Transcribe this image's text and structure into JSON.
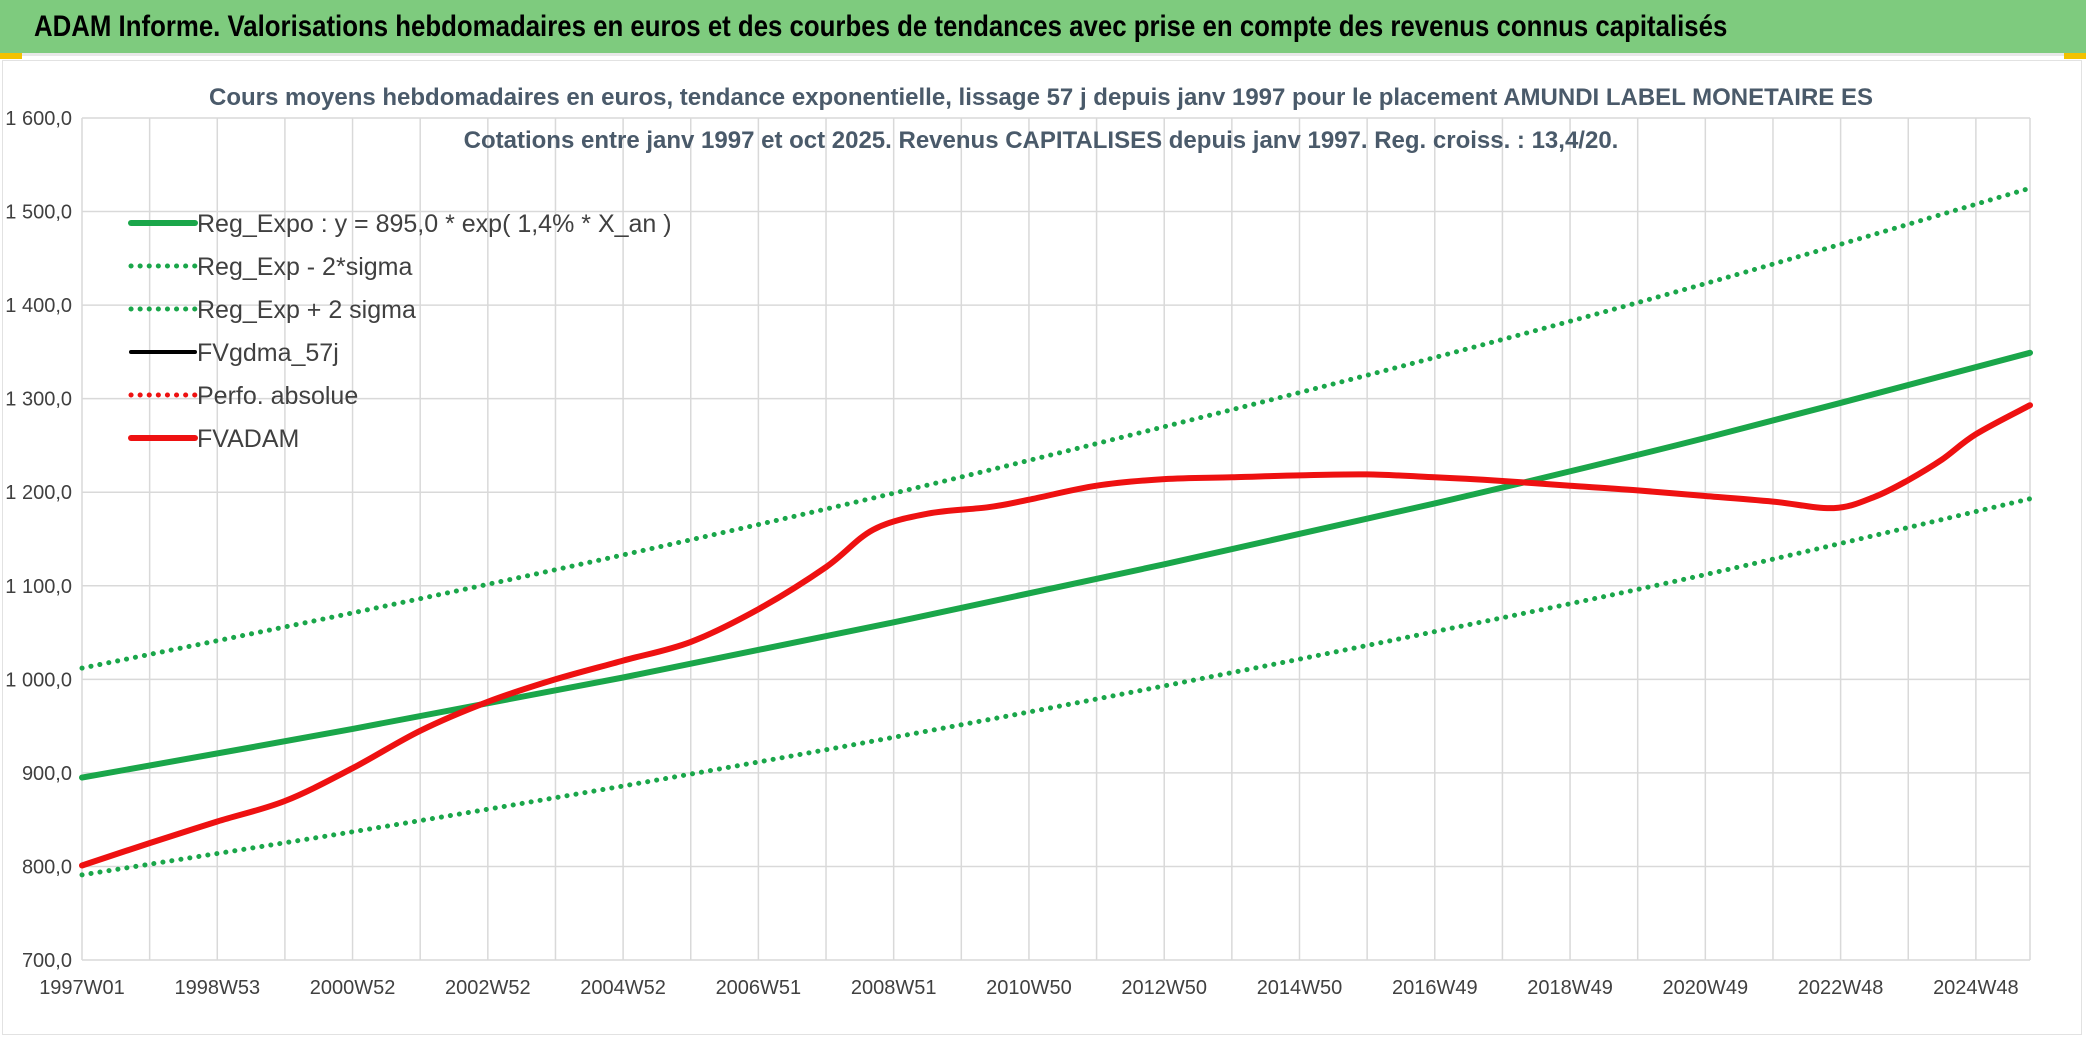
{
  "banner": {
    "title": "ADAM Informe. Valorisations hebdomadaires en euros et des courbes de tendances avec prise en compte des revenus connus capitalisés"
  },
  "colors": {
    "banner_bg": "#7ecb7e",
    "corner": "#f2c200",
    "trend": "#1aa64a",
    "band": "#1aa64a",
    "fvadam": "#ee1111",
    "fvgdma": "#000000",
    "perfo": "#ee1111",
    "grid": "#d9d9d9"
  },
  "chart_data": {
    "type": "line",
    "title": "Cours moyens hebdomadaires en euros, tendance exponentielle, lissage 57 j depuis janv 1997 pour le placement AMUNDI LABEL MONETAIRE ES",
    "subtitle": "Cotations entre janv 1997 et oct 2025. Revenus CAPITALISES depuis janv 1997. Reg. croiss. : 13,4/20.",
    "xlabel": "",
    "ylabel": "",
    "ylim": [
      700,
      1600
    ],
    "xlim": [
      1997.0,
      2025.8
    ],
    "grid": true,
    "legend_position": "top-left",
    "y_ticks": [
      "700,0",
      "800,0",
      "900,0",
      "1 000,0",
      "1 100,0",
      "1 200,0",
      "1 300,0",
      "1 400,0",
      "1 500,0",
      "1 600,0"
    ],
    "x_ticks": [
      {
        "label": "1997W01",
        "x": 1997.0
      },
      {
        "label": "1998W53",
        "x": 1999.0
      },
      {
        "label": "2000W52",
        "x": 2001.0
      },
      {
        "label": "2002W52",
        "x": 2003.0
      },
      {
        "label": "2004W52",
        "x": 2005.0
      },
      {
        "label": "2006W51",
        "x": 2007.0
      },
      {
        "label": "2008W51",
        "x": 2009.0
      },
      {
        "label": "2010W50",
        "x": 2011.0
      },
      {
        "label": "2012W50",
        "x": 2013.0
      },
      {
        "label": "2014W50",
        "x": 2015.0
      },
      {
        "label": "2016W49",
        "x": 2017.0
      },
      {
        "label": "2018W49",
        "x": 2019.0
      },
      {
        "label": "2020W49",
        "x": 2021.0
      },
      {
        "label": "2022W48",
        "x": 2023.0
      },
      {
        "label": "2024W48",
        "x": 2025.0
      }
    ],
    "series": [
      {
        "name": "Reg_Expo : y = 895,0 * exp( 1,4% *  X_an )",
        "style": "solid-thick",
        "color": "#1aa64a",
        "points": [
          [
            1997.0,
            895
          ],
          [
            2001.0,
            947
          ],
          [
            2005.0,
            1002
          ],
          [
            2009.0,
            1061
          ],
          [
            2013.0,
            1123
          ],
          [
            2017.0,
            1188
          ],
          [
            2021.0,
            1258
          ],
          [
            2025.8,
            1349
          ]
        ]
      },
      {
        "name": "Reg_Exp - 2*sigma",
        "style": "dotted",
        "color": "#1aa64a",
        "points": [
          [
            1997.0,
            791
          ],
          [
            2001.0,
            837
          ],
          [
            2005.0,
            886
          ],
          [
            2009.0,
            938
          ],
          [
            2013.0,
            993
          ],
          [
            2017.0,
            1051
          ],
          [
            2021.0,
            1112
          ],
          [
            2025.8,
            1193
          ]
        ]
      },
      {
        "name": "Reg_Exp + 2 sigma",
        "style": "dotted",
        "color": "#1aa64a",
        "points": [
          [
            1997.0,
            1012
          ],
          [
            2001.0,
            1071
          ],
          [
            2005.0,
            1133
          ],
          [
            2009.0,
            1199
          ],
          [
            2013.0,
            1270
          ],
          [
            2017.0,
            1344
          ],
          [
            2021.0,
            1423
          ],
          [
            2025.8,
            1525
          ]
        ]
      },
      {
        "name": "FVgdma_57j",
        "style": "solid",
        "color": "#000000",
        "points": []
      },
      {
        "name": "Perfo. absolue",
        "style": "dotted",
        "color": "#ee1111",
        "points": []
      },
      {
        "name": "FVADAM",
        "style": "solid-thick",
        "color": "#ee1111",
        "points": [
          [
            1997.0,
            801
          ],
          [
            1998.0,
            825
          ],
          [
            1999.0,
            848
          ],
          [
            2000.0,
            870
          ],
          [
            2001.0,
            905
          ],
          [
            2002.0,
            945
          ],
          [
            2003.0,
            976
          ],
          [
            2004.0,
            1000
          ],
          [
            2005.0,
            1020
          ],
          [
            2006.0,
            1040
          ],
          [
            2007.0,
            1075
          ],
          [
            2008.0,
            1120
          ],
          [
            2008.7,
            1160
          ],
          [
            2009.5,
            1177
          ],
          [
            2010.4,
            1184
          ],
          [
            2011.0,
            1192
          ],
          [
            2012.0,
            1207
          ],
          [
            2013.0,
            1214
          ],
          [
            2014.0,
            1216
          ],
          [
            2015.0,
            1218
          ],
          [
            2016.0,
            1219
          ],
          [
            2017.0,
            1216
          ],
          [
            2018.0,
            1212
          ],
          [
            2019.0,
            1207
          ],
          [
            2020.0,
            1202
          ],
          [
            2021.0,
            1196
          ],
          [
            2022.0,
            1190
          ],
          [
            2022.9,
            1183
          ],
          [
            2023.5,
            1195
          ],
          [
            2024.0,
            1213
          ],
          [
            2024.5,
            1235
          ],
          [
            2025.0,
            1262
          ],
          [
            2025.8,
            1293
          ]
        ]
      }
    ]
  }
}
